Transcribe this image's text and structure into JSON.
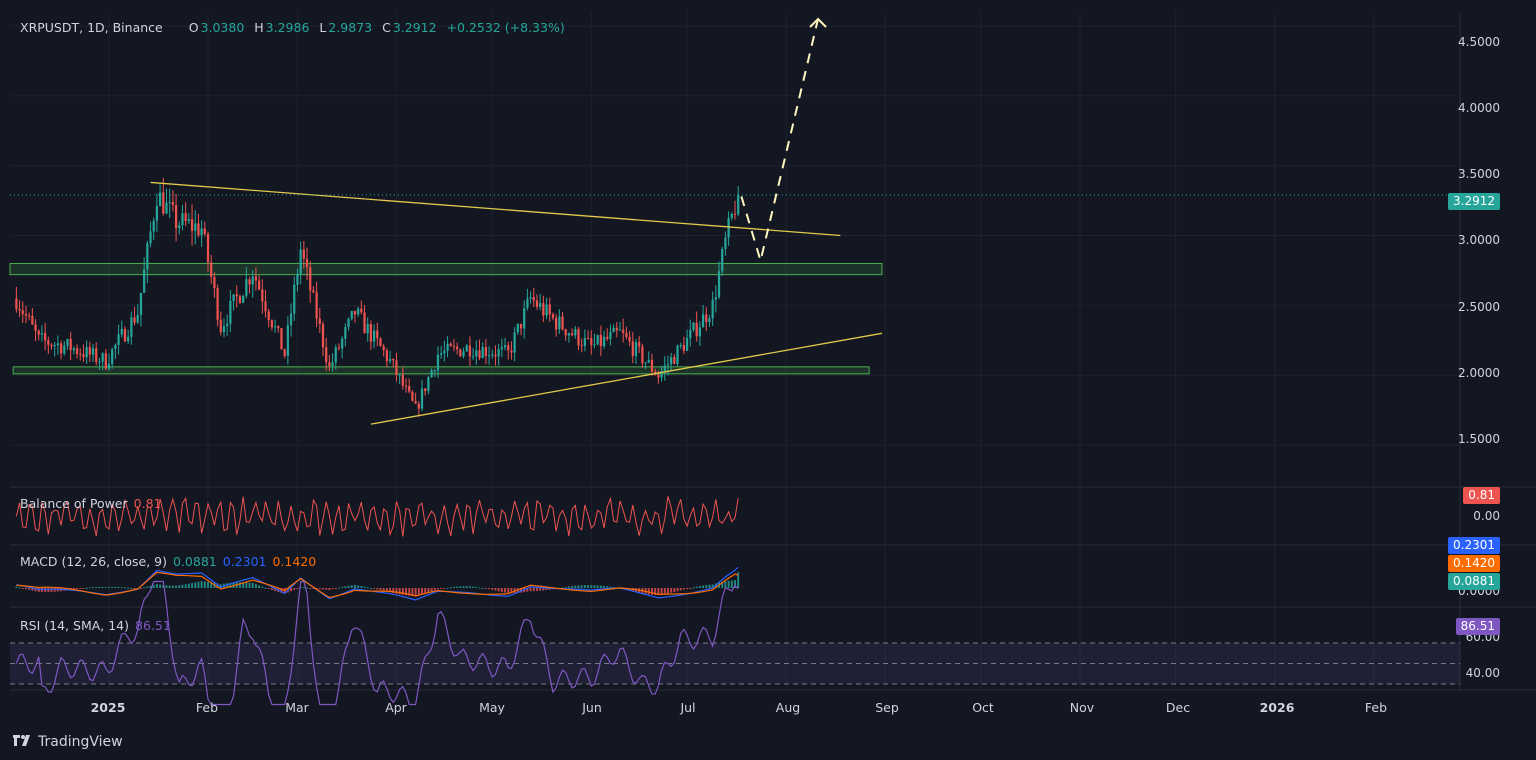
{
  "header": {
    "symbol": "XRPUSDT, 1D, Binance",
    "open_label": "O",
    "open": "3.0380",
    "high_label": "H",
    "high": "3.2986",
    "low_label": "L",
    "low": "2.9873",
    "close_label": "C",
    "close": "3.2912",
    "change": "+0.2532 (+8.33%)"
  },
  "price_axis": {
    "ticks": [
      "4.5000",
      "4.0000",
      "3.5000",
      "3.0000",
      "2.5000",
      "2.0000",
      "1.5000"
    ],
    "current_price": "3.2912"
  },
  "time_axis": {
    "labels": [
      "2025",
      "Feb",
      "Mar",
      "Apr",
      "May",
      "Jun",
      "Jul",
      "Aug",
      "Sep",
      "Oct",
      "Nov",
      "Dec",
      "2026",
      "Feb"
    ]
  },
  "indicators": {
    "bop": {
      "label": "Balance of Power",
      "value": "0.81",
      "axis_tick": "0.00"
    },
    "macd": {
      "label": "MACD (12, 26, close, 9)",
      "hist": "0.0881",
      "macd": "0.2301",
      "signal": "0.1420",
      "axis_tick": "0.0000"
    },
    "rsi": {
      "label": "RSI (14, SMA, 14)",
      "value": "86.51",
      "axis_tick_high": "60.00",
      "axis_tick_low": "40.00"
    }
  },
  "colors": {
    "background": "#131722",
    "up": "#26a69a",
    "down": "#ef5350",
    "trendline": "#e2c94b",
    "zone_fill": "#4caf50",
    "macd": "#2962ff",
    "signal": "#ff6d00",
    "rsi": "#7e57c2",
    "projection": "#fff6c0"
  },
  "brand": {
    "name": "TradingView"
  },
  "chart_data": {
    "type": "candlestick",
    "title": "XRPUSDT, 1D, Binance",
    "ylim": [
      1.2,
      4.6
    ],
    "x_range": [
      "2024-12-01",
      "2026-02-28"
    ],
    "key_points": [
      {
        "date": "2024-12-03",
        "price": 2.55
      },
      {
        "date": "2024-12-10",
        "price": 2.25
      },
      {
        "date": "2024-12-20",
        "price": 2.2
      },
      {
        "date": "2024-12-31",
        "price": 2.1
      },
      {
        "date": "2025-01-10",
        "price": 2.45
      },
      {
        "date": "2025-01-16",
        "price": 3.3
      },
      {
        "date": "2025-01-22",
        "price": 3.1
      },
      {
        "date": "2025-01-30",
        "price": 3.05
      },
      {
        "date": "2025-02-05",
        "price": 2.35
      },
      {
        "date": "2025-02-15",
        "price": 2.75
      },
      {
        "date": "2025-02-25",
        "price": 2.15
      },
      {
        "date": "2025-03-02",
        "price": 2.9
      },
      {
        "date": "2025-03-11",
        "price": 2.05
      },
      {
        "date": "2025-03-19",
        "price": 2.45
      },
      {
        "date": "2025-03-30",
        "price": 2.1
      },
      {
        "date": "2025-04-07",
        "price": 1.75
      },
      {
        "date": "2025-04-14",
        "price": 2.15
      },
      {
        "date": "2025-04-24",
        "price": 2.2
      },
      {
        "date": "2025-05-06",
        "price": 2.15
      },
      {
        "date": "2025-05-13",
        "price": 2.55
      },
      {
        "date": "2025-05-20",
        "price": 2.4
      },
      {
        "date": "2025-06-01",
        "price": 2.2
      },
      {
        "date": "2025-06-10",
        "price": 2.3
      },
      {
        "date": "2025-06-22",
        "price": 2.0
      },
      {
        "date": "2025-07-01",
        "price": 2.25
      },
      {
        "date": "2025-07-09",
        "price": 2.5
      },
      {
        "date": "2025-07-13",
        "price": 2.95
      },
      {
        "date": "2025-07-17",
        "price": 3.3
      }
    ],
    "trendlines": [
      {
        "from": {
          "date": "2025-01-14",
          "price": 3.38
        },
        "to": {
          "date": "2025-08-18",
          "price": 3.0
        }
      },
      {
        "from": {
          "date": "2025-03-24",
          "price": 1.65
        },
        "to": {
          "date": "2025-08-31",
          "price": 2.3
        }
      }
    ],
    "zones": [
      {
        "from_date": "2024-12-01",
        "to_date": "2025-08-31",
        "price_low": 2.72,
        "price_high": 2.8
      },
      {
        "from_date": "2024-12-02",
        "to_date": "2025-08-27",
        "price_low": 2.01,
        "price_high": 2.06
      }
    ],
    "projection": [
      {
        "date": "2025-07-18",
        "price": 3.28
      },
      {
        "date": "2025-07-24",
        "price": 2.82
      },
      {
        "date": "2025-08-11",
        "price": 4.55
      }
    ],
    "indicators": {
      "bop_last": 0.81,
      "macd_last": {
        "hist": 0.0881,
        "macd": 0.2301,
        "signal": 0.142
      },
      "rsi_last": 86.51,
      "rsi_band": [
        40,
        60
      ]
    }
  }
}
